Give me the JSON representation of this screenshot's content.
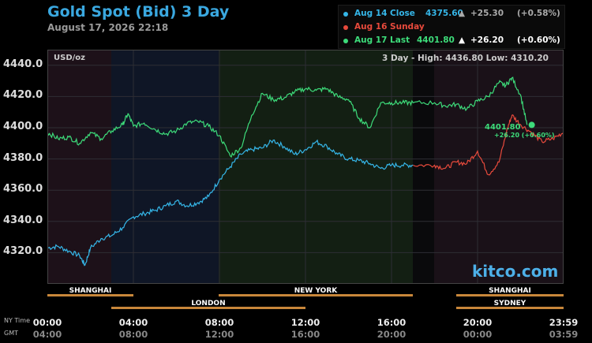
{
  "header": {
    "title": "Gold Spot (Bid) 3 Day",
    "datetime": "August 17, 2026 22:18"
  },
  "legend": [
    {
      "label": "Aug 14 Close",
      "value": "4375.60",
      "arrow": "▲",
      "change": "+25.30",
      "pct": "(+0.58%)",
      "color": "#35b6e8"
    },
    {
      "label": "Aug 16 Sunday",
      "value": "",
      "arrow": "",
      "change": "",
      "pct": "",
      "color": "#e84a3c"
    },
    {
      "label": "Aug 17 Last",
      "value": "4401.80",
      "arrow": "▲",
      "change": "+26.20",
      "pct": "(+0.60%)",
      "color": "#3ddc7a"
    }
  ],
  "plot": {
    "unit": "USD/oz",
    "stats": "3 Day - High: 4436.80  Low: 4310.20",
    "last_value": "4401.80",
    "last_change": "+26.20 (+0.60%)",
    "brand": "kitco.com"
  },
  "sessions": {
    "shanghai_1": "SHANGHAI",
    "london": "LONDON",
    "new_york": "NEW YORK",
    "shanghai_2": "SHANGHAI",
    "sydney": "SYDNEY"
  },
  "time_axis": {
    "ny_label": "NY Time",
    "gmt_label": "GMT",
    "ny": [
      "00:00",
      "04:00",
      "08:00",
      "12:00",
      "16:00",
      "20:00",
      "23:59"
    ],
    "gmt": [
      "04:00",
      "08:00",
      "12:00",
      "16:00",
      "20:00",
      "00:00",
      "03:59"
    ]
  },
  "chart_data": {
    "type": "line",
    "ylim": [
      4300,
      4450
    ],
    "yticks": [
      "4320.0",
      "4340.0",
      "4360.0",
      "4380.0",
      "4400.0",
      "4420.0",
      "4440.0"
    ],
    "xlim": [
      0,
      24
    ],
    "x_unit": "hours (NY time)",
    "series": [
      {
        "name": "Aug 14 Close",
        "color": "#35b6e8",
        "x": [
          0,
          0.5,
          1,
          1.5,
          1.75,
          2,
          2.5,
          3,
          3.5,
          4,
          4.5,
          5,
          5.5,
          6,
          6.5,
          7,
          7.5,
          8,
          8.5,
          9,
          9.5,
          10,
          10.5,
          11,
          11.5,
          12,
          12.5,
          13,
          13.5,
          14,
          14.5,
          15,
          15.5,
          16,
          16.5,
          17
        ],
        "values": [
          4323,
          4324,
          4321,
          4318,
          4312,
          4323,
          4329,
          4331,
          4336,
          4343,
          4345,
          4347,
          4350,
          4353,
          4350,
          4352,
          4356,
          4367,
          4375,
          4383,
          4386,
          4387,
          4392,
          4388,
          4383,
          4386,
          4391,
          4388,
          4383,
          4380,
          4379,
          4377,
          4374,
          4376,
          4376,
          4376
        ]
      },
      {
        "name": "Aug 16 Sunday",
        "color": "#e84a3c",
        "x": [
          17,
          18,
          18.5,
          19,
          19.5,
          20,
          20.5,
          21,
          21.4,
          21.6,
          22,
          22.5,
          23,
          23.5,
          24
        ],
        "values": [
          4376,
          4376,
          4374,
          4378,
          4377,
          4385,
          4370,
          4378,
          4400,
          4408,
          4402,
          4397,
          4391,
          4393,
          4397
        ]
      },
      {
        "name": "Aug 17 Last",
        "color": "#3ddc7a",
        "x": [
          0,
          0.5,
          1,
          1.5,
          2,
          2.5,
          3,
          3.5,
          3.75,
          4,
          4.5,
          5,
          5.5,
          6,
          6.5,
          7,
          7.5,
          8,
          8.5,
          9,
          9.5,
          10,
          10.5,
          11,
          11.5,
          12,
          12.5,
          13,
          13.5,
          14,
          14.5,
          15,
          15.5,
          16,
          16.5,
          17,
          18,
          18.5,
          19,
          19.5,
          20,
          20.5,
          21,
          21.3,
          21.6,
          22,
          22.3
        ],
        "values": [
          4397,
          4393,
          4394,
          4390,
          4397,
          4393,
          4398,
          4402,
          4409,
          4401,
          4403,
          4399,
          4396,
          4398,
          4403,
          4404,
          4401,
          4395,
          4382,
          4387,
          4408,
          4422,
          4418,
          4419,
          4423,
          4425,
          4424,
          4425,
          4420,
          4418,
          4406,
          4400,
          4416,
          4416,
          4416,
          4416,
          4416,
          4414,
          4415,
          4412,
          4417,
          4420,
          4429,
          4427,
          4432,
          4421,
          4401.8
        ]
      }
    ]
  }
}
